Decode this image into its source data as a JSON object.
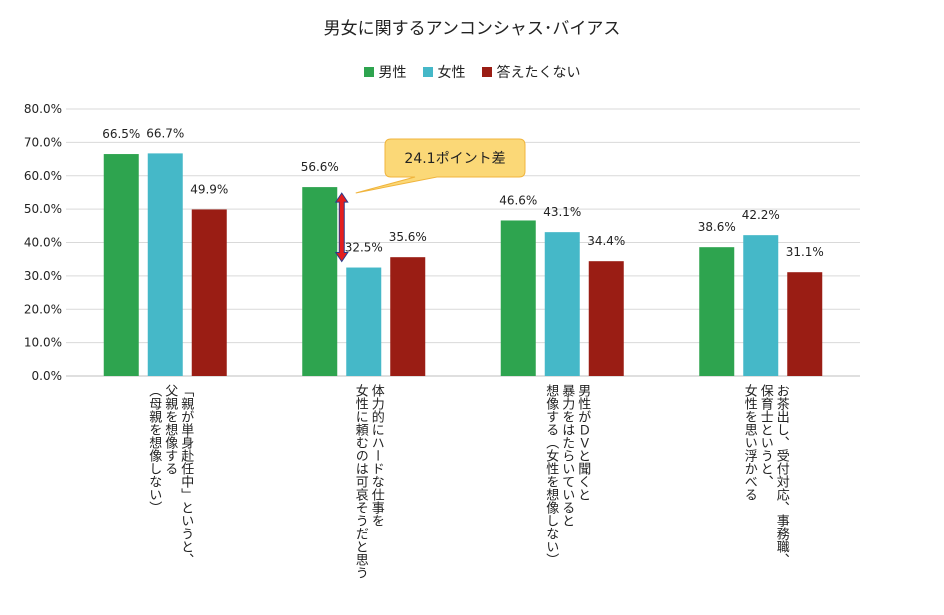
{
  "chart_data": {
    "type": "bar",
    "title": "男女に関するアンコンシャス･バイアス",
    "categories": [
      "「親が単身赴任中」というと、\n父親を想像する\n（母親を想像しない）",
      "体力的にハードな仕事を\n女性に頼むのは可哀そうだと思う",
      "男性がＤＶと聞くと\n暴力をはたらいていると\n想像する（女性を想像しない）",
      "お茶出し、受付対応、事務職、\n保育士というと、\n女性を思い浮かべる"
    ],
    "series": [
      {
        "name": "男性",
        "values": [
          66.5,
          56.6,
          46.6,
          38.6
        ],
        "labels": [
          "66.5%",
          "56.6%",
          "46.6%",
          "38.6%"
        ],
        "color": "#2ea44f"
      },
      {
        "name": "女性",
        "values": [
          66.7,
          32.5,
          43.1,
          42.2
        ],
        "labels": [
          "66.7%",
          "32.5%",
          "43.1%",
          "42.2%"
        ],
        "color": "#45b8c8"
      },
      {
        "name": "答えたくない",
        "values": [
          49.9,
          35.6,
          34.4,
          31.1
        ],
        "labels": [
          "49.9%",
          "35.6%",
          "34.4%",
          "31.1%"
        ],
        "color": "#9a1d14"
      }
    ],
    "ylim": [
      0,
      80
    ],
    "yticks": [
      "0.0%",
      "10.0%",
      "20.0%",
      "30.0%",
      "40.0%",
      "50.0%",
      "60.0%",
      "70.0%",
      "80.0%"
    ],
    "grid": true,
    "legend": "top",
    "annotation": {
      "text": "24.1ポイント差",
      "category_index": 1,
      "from_series": 1,
      "to_series": 0
    }
  },
  "colors": {
    "callout_fill": "#fbd877",
    "callout_border": "#f0b43c",
    "arrow": "#e41e1e",
    "arrow_border": "#2a3a8a",
    "grid": "#d9d9d9"
  }
}
